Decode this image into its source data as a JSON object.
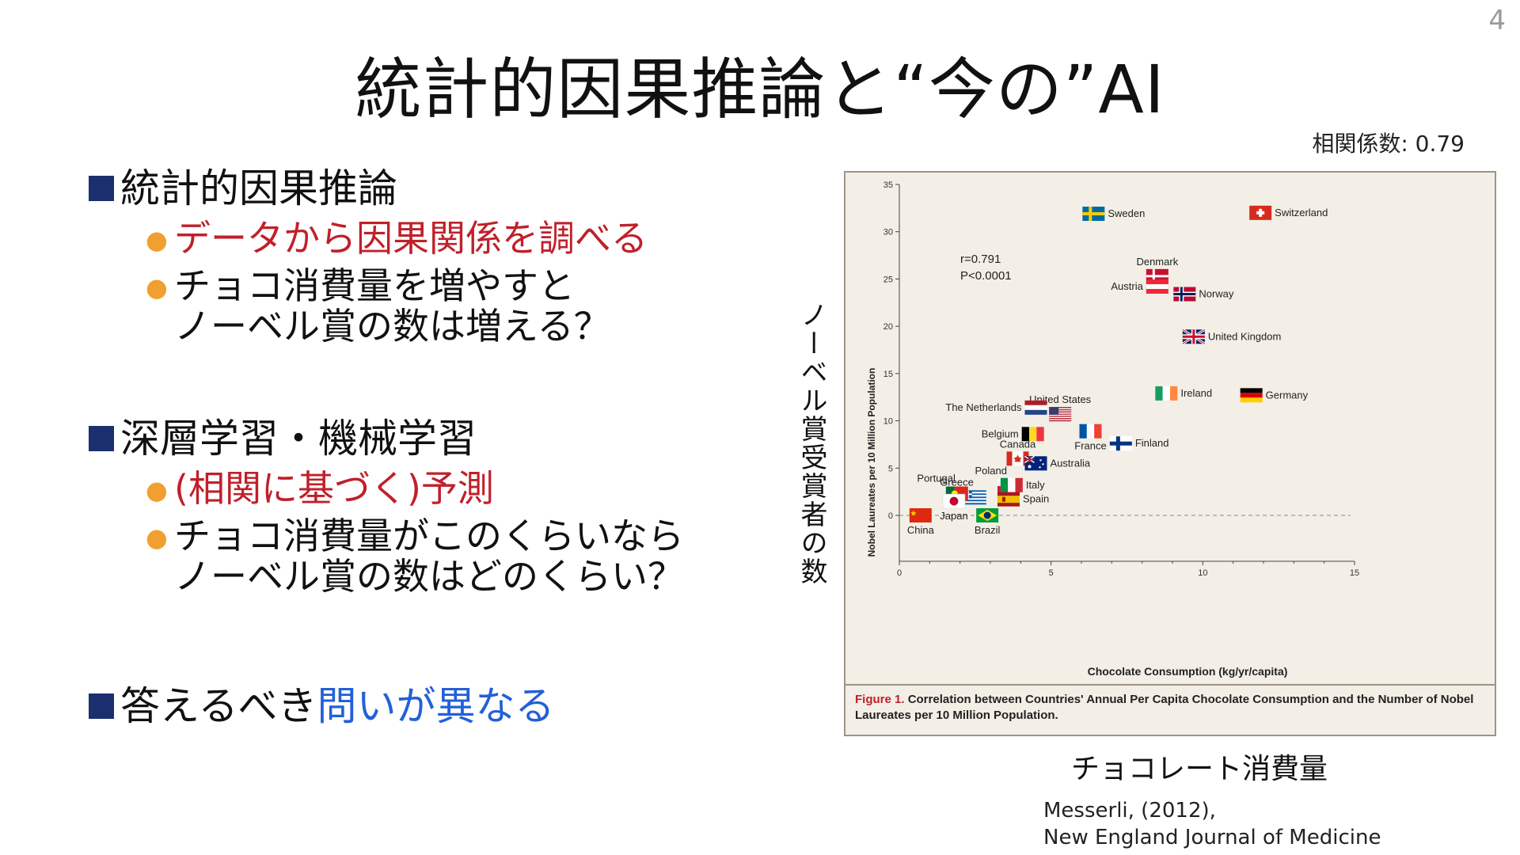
{
  "page_number": "4",
  "title": "統計的因果推論と“今の”AI",
  "correlation_note": "相関係数: 0.79",
  "sections": [
    {
      "heading": "統計的因果推論",
      "bullets": [
        {
          "line1": "データから因果関係を調べる",
          "line2": "",
          "color": "red"
        },
        {
          "line1": "チョコ消費量を増やすと",
          "line2": "ノーベル賞の数は増える？",
          "color": "black"
        }
      ]
    },
    {
      "heading": "深層学習・機械学習",
      "bullets": [
        {
          "line1": "(相関に基づく)予測",
          "line2": "",
          "color": "red"
        },
        {
          "line1": "チョコ消費量がこのくらいなら",
          "line2": "ノーベル賞の数はどのくらい？",
          "color": "black"
        }
      ]
    },
    {
      "heading_plain": "答えるべき",
      "heading_highlight": "問いが異なる"
    }
  ],
  "figure": {
    "y_caption_vertical": "ノーベル賞受賞者の数",
    "x_caption": "チョコレート消費量",
    "caption_label": "Figure 1.",
    "caption_text": "Correlation between Countries' Annual Per Capita Chocolate Consumption and the Number of Nobel Laureates per 10 Million Population.",
    "stats": [
      "r=0.791",
      "P<0.0001"
    ]
  },
  "citation": {
    "line1": "Messerli, (2012),",
    "line2": "New England Journal of Medicine"
  },
  "chart_data": {
    "type": "scatter",
    "title": "",
    "xlabel": "Chocolate Consumption (kg/yr/capita)",
    "ylabel": "Nobel Laureates per 10 Million Population",
    "xlim": [
      0,
      15
    ],
    "ylim": [
      0,
      35
    ],
    "x_ticks": [
      0,
      5,
      10,
      15
    ],
    "y_ticks": [
      0,
      5,
      10,
      15,
      20,
      25,
      30,
      35
    ],
    "grid": false,
    "points": [
      {
        "name": "Switzerland",
        "x": 11.9,
        "y": 32.0,
        "flag": "switzerland"
      },
      {
        "name": "Sweden",
        "x": 6.4,
        "y": 31.9,
        "flag": "sweden"
      },
      {
        "name": "Denmark",
        "x": 8.5,
        "y": 25.3,
        "flag": "denmark"
      },
      {
        "name": "Austria",
        "x": 8.5,
        "y": 24.2,
        "flag": "austria"
      },
      {
        "name": "Norway",
        "x": 9.4,
        "y": 23.4,
        "flag": "norway"
      },
      {
        "name": "United Kingdom",
        "x": 9.7,
        "y": 18.9,
        "flag": "uk"
      },
      {
        "name": "Ireland",
        "x": 8.8,
        "y": 12.9,
        "flag": "ireland"
      },
      {
        "name": "Germany",
        "x": 11.6,
        "y": 12.7,
        "flag": "germany"
      },
      {
        "name": "United States",
        "x": 5.3,
        "y": 10.7,
        "flag": "usa"
      },
      {
        "name": "The Netherlands",
        "x": 4.5,
        "y": 11.4,
        "flag": "netherlands"
      },
      {
        "name": "France",
        "x": 6.3,
        "y": 8.9,
        "flag": "france"
      },
      {
        "name": "Finland",
        "x": 7.3,
        "y": 7.6,
        "flag": "finland"
      },
      {
        "name": "Belgium",
        "x": 4.4,
        "y": 8.6,
        "flag": "belgium"
      },
      {
        "name": "Canada",
        "x": 3.9,
        "y": 6.0,
        "flag": "canada"
      },
      {
        "name": "Australia",
        "x": 4.5,
        "y": 5.5,
        "flag": "australia"
      },
      {
        "name": "Poland",
        "x": 3.6,
        "y": 3.1,
        "flag": "poland"
      },
      {
        "name": "Greece",
        "x": 2.5,
        "y": 1.9,
        "flag": "greece"
      },
      {
        "name": "Portugal",
        "x": 1.9,
        "y": 2.3,
        "flag": "portugal"
      },
      {
        "name": "Italy",
        "x": 3.7,
        "y": 3.2,
        "flag": "italy"
      },
      {
        "name": "Spain",
        "x": 3.6,
        "y": 1.7,
        "flag": "spain"
      },
      {
        "name": "Japan",
        "x": 1.8,
        "y": 1.5,
        "flag": "japan"
      },
      {
        "name": "Brazil",
        "x": 2.9,
        "y": 0.0,
        "flag": "brazil"
      },
      {
        "name": "China",
        "x": 0.7,
        "y": 0.0,
        "flag": "china"
      }
    ]
  }
}
